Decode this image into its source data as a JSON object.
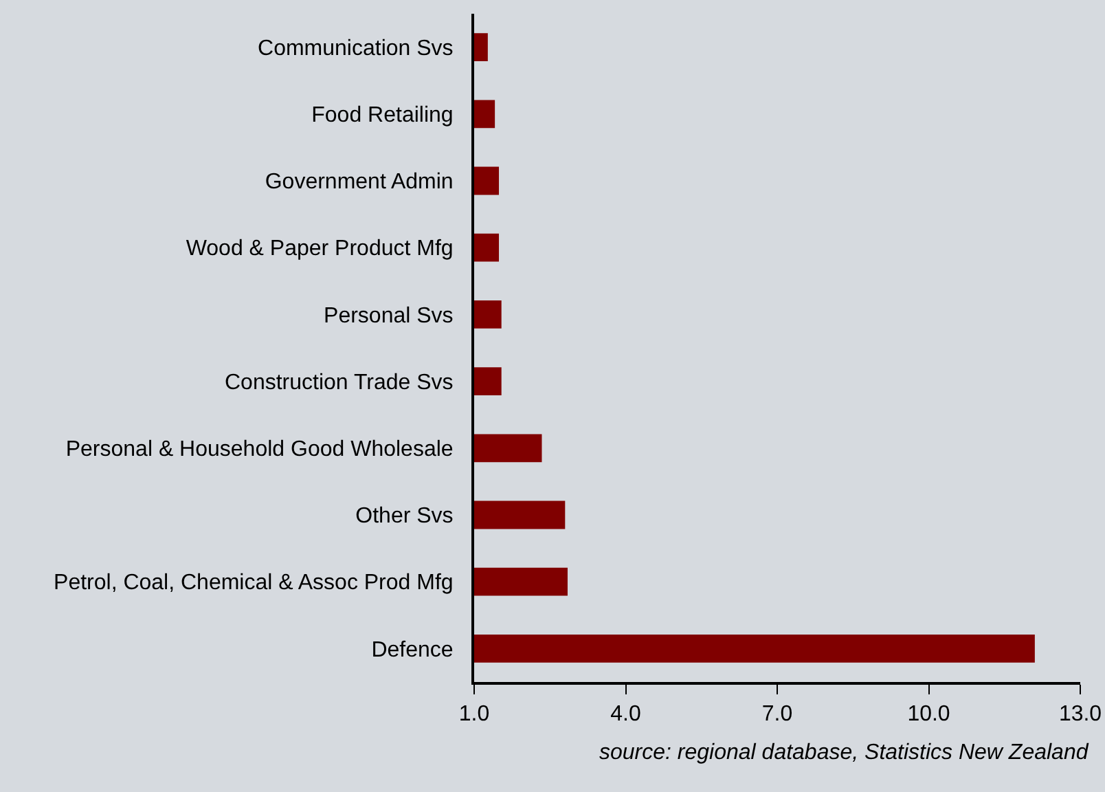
{
  "chart_data": {
    "type": "bar",
    "orientation": "horizontal",
    "categories": [
      "Communication Svs",
      "Food Retailing",
      "Government Admin",
      "Wood & Paper Product Mfg",
      "Personal Svs",
      "Construction Trade Svs",
      "Personal & Household Good Wholesale",
      "Other Svs",
      "Petrol, Coal, Chemical & Assoc Prod Mfg",
      "Defence"
    ],
    "values": [
      1.27,
      1.41,
      1.49,
      1.49,
      1.54,
      1.54,
      2.34,
      2.8,
      2.85,
      12.1
    ],
    "color": "#800000",
    "xlim": [
      1,
      13
    ],
    "xticks": [
      {
        "value": 1,
        "label": "1.0"
      },
      {
        "value": 4,
        "label": "4.0"
      },
      {
        "value": 7,
        "label": "7.0"
      },
      {
        "value": 10,
        "label": "10.0"
      },
      {
        "value": 13,
        "label": "13.0"
      }
    ],
    "grid": false,
    "annotations": [
      "source: regional database, Statistics New Zealand"
    ]
  }
}
